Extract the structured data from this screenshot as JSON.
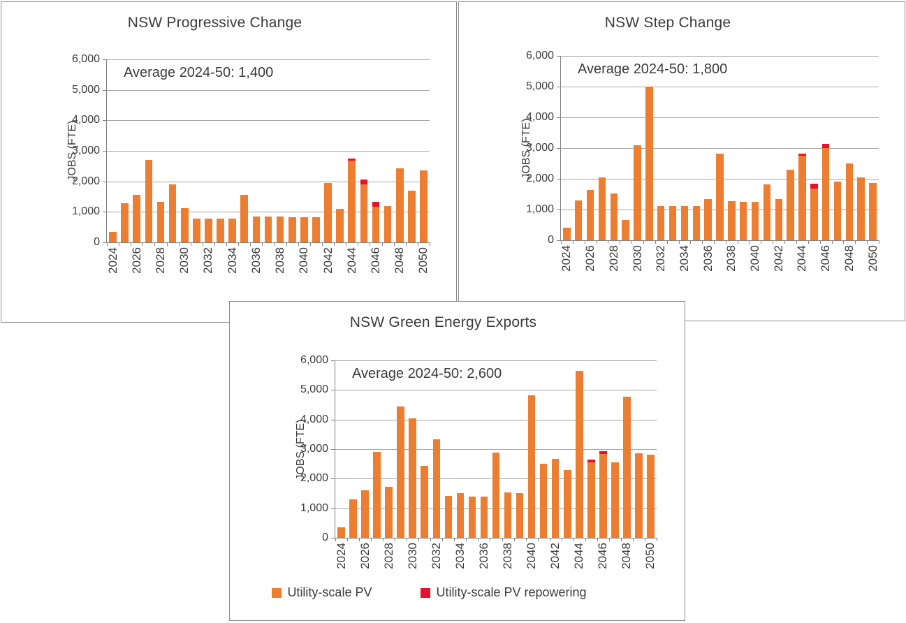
{
  "colors": {
    "bar_orange": "#ED7D31",
    "bar_red": "#E8112D",
    "gridline": "#A6A6A6",
    "axis": "#808080",
    "text": "#3B3B3B",
    "panel_border": "#8C8C8C"
  },
  "legend": {
    "items": [
      {
        "label": "Utility-scale PV",
        "color": "#ED7D31"
      },
      {
        "label": "Utility-scale PV repowering",
        "color": "#E8112D"
      }
    ]
  },
  "chart_data": [
    {
      "type": "bar",
      "stacked": true,
      "title": "NSW Progressive Change",
      "annotation": "Average 2024-50: 1,400",
      "average_2024_50": 1400,
      "xlabel": "",
      "ylabel": "JOBS (FTE)",
      "ylim": [
        0,
        6000
      ],
      "ytick_step": 1000,
      "y_tick_labels": [
        "0",
        "1,000",
        "2,000",
        "3,000",
        "4,000",
        "5,000",
        "6,000"
      ],
      "grid": true,
      "legend_position": "none",
      "categories": [
        2024,
        2025,
        2026,
        2027,
        2028,
        2029,
        2030,
        2031,
        2032,
        2033,
        2034,
        2035,
        2036,
        2037,
        2038,
        2039,
        2040,
        2041,
        2042,
        2043,
        2044,
        2045,
        2046,
        2047,
        2048,
        2049,
        2050
      ],
      "x_tick_labels_shown": [
        "2024",
        "2026",
        "2028",
        "2030",
        "2032",
        "2034",
        "2036",
        "2038",
        "2040",
        "2042",
        "2044",
        "2046",
        "2048",
        "2050"
      ],
      "series": [
        {
          "name": "Utility-scale PV",
          "color": "#ED7D31",
          "values": [
            350,
            1280,
            1560,
            2700,
            1340,
            1910,
            1120,
            780,
            780,
            780,
            780,
            1560,
            850,
            850,
            850,
            820,
            820,
            820,
            1950,
            1110,
            2670,
            1890,
            1170,
            1200,
            2430,
            1700,
            2350
          ]
        },
        {
          "name": "Utility-scale PV repowering",
          "color": "#E8112D",
          "values": [
            0,
            0,
            0,
            0,
            0,
            0,
            0,
            0,
            0,
            0,
            0,
            0,
            0,
            0,
            0,
            0,
            0,
            0,
            0,
            0,
            80,
            170,
            170,
            0,
            0,
            0,
            0
          ]
        }
      ]
    },
    {
      "type": "bar",
      "stacked": true,
      "title": "NSW Step Change",
      "annotation": "Average 2024-50: 1,800",
      "average_2024_50": 1800,
      "xlabel": "",
      "ylabel": "JOBS (FTE)",
      "ylim": [
        0,
        6000
      ],
      "ytick_step": 1000,
      "y_tick_labels": [
        "0",
        "1,000",
        "2,000",
        "3,000",
        "4,000",
        "5,000",
        "6,000"
      ],
      "grid": true,
      "legend_position": "none",
      "categories": [
        2024,
        2025,
        2026,
        2027,
        2028,
        2029,
        2030,
        2031,
        2032,
        2033,
        2034,
        2035,
        2036,
        2037,
        2038,
        2039,
        2040,
        2041,
        2042,
        2043,
        2044,
        2045,
        2046,
        2047,
        2048,
        2049,
        2050
      ],
      "x_tick_labels_shown": [
        "2024",
        "2026",
        "2028",
        "2030",
        "2032",
        "2034",
        "2036",
        "2038",
        "2040",
        "2042",
        "2044",
        "2046",
        "2048",
        "2050"
      ],
      "series": [
        {
          "name": "Utility-scale PV",
          "color": "#ED7D31",
          "values": [
            400,
            1300,
            1640,
            2040,
            1520,
            650,
            3080,
            5010,
            1110,
            1110,
            1110,
            1110,
            1350,
            2820,
            1280,
            1250,
            1250,
            1820,
            1330,
            2290,
            2760,
            1680,
            3000,
            1910,
            2500,
            2040,
            1870
          ]
        },
        {
          "name": "Utility-scale PV repowering",
          "color": "#E8112D",
          "values": [
            0,
            0,
            0,
            0,
            0,
            0,
            0,
            0,
            0,
            0,
            0,
            0,
            0,
            0,
            0,
            0,
            0,
            0,
            0,
            0,
            50,
            170,
            130,
            0,
            0,
            0,
            0
          ]
        }
      ]
    },
    {
      "type": "bar",
      "stacked": true,
      "title": "NSW Green Energy Exports",
      "annotation": "Average 2024-50: 2,600",
      "average_2024_50": 2600,
      "xlabel": "",
      "ylabel": "JOBS (FTE)",
      "ylim": [
        0,
        6000
      ],
      "ytick_step": 1000,
      "y_tick_labels": [
        "0",
        "1,000",
        "2,000",
        "3,000",
        "4,000",
        "5,000",
        "6,000"
      ],
      "grid": true,
      "legend_position": "bottom",
      "categories": [
        2024,
        2025,
        2026,
        2027,
        2028,
        2029,
        2030,
        2031,
        2032,
        2033,
        2034,
        2035,
        2036,
        2037,
        2038,
        2039,
        2040,
        2041,
        2042,
        2043,
        2044,
        2045,
        2046,
        2047,
        2048,
        2049,
        2050
      ],
      "x_tick_labels_shown": [
        "2024",
        "2026",
        "2028",
        "2030",
        "2032",
        "2034",
        "2036",
        "2038",
        "2040",
        "2042",
        "2044",
        "2046",
        "2048",
        "2050"
      ],
      "series": [
        {
          "name": "Utility-scale PV",
          "color": "#ED7D31",
          "values": [
            350,
            1290,
            1600,
            2900,
            1720,
            4440,
            4030,
            2440,
            3330,
            1410,
            1510,
            1400,
            1400,
            2890,
            1530,
            1510,
            4830,
            2510,
            2680,
            2290,
            5640,
            2550,
            2830,
            2540,
            4780,
            2850,
            2800
          ]
        },
        {
          "name": "Utility-scale PV repowering",
          "color": "#E8112D",
          "values": [
            0,
            0,
            0,
            0,
            0,
            0,
            0,
            0,
            0,
            0,
            0,
            0,
            0,
            0,
            0,
            0,
            0,
            0,
            0,
            0,
            0,
            90,
            100,
            0,
            0,
            0,
            0
          ]
        }
      ]
    }
  ]
}
